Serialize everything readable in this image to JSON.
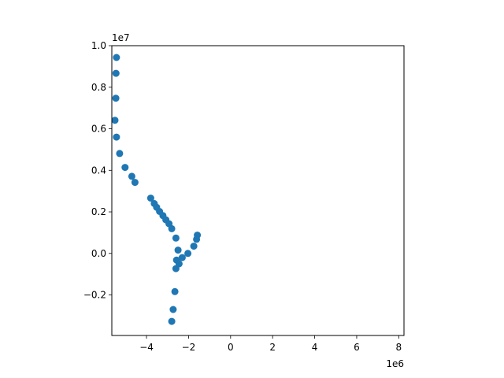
{
  "chart_data": {
    "type": "scatter",
    "title": "",
    "xlabel": "",
    "ylabel": "",
    "x_offset_label": "1e6",
    "y_offset_label": "1e7",
    "xlim": [
      -5.65,
      8.25
    ],
    "ylim": [
      -0.395,
      1.0
    ],
    "xticks": [
      -4,
      -2,
      0,
      2,
      4,
      6,
      8
    ],
    "xtick_labels": [
      "−4",
      "−2",
      "0",
      "2",
      "4",
      "6",
      "8"
    ],
    "yticks": [
      -0.2,
      0.0,
      0.2,
      0.4,
      0.6,
      0.8,
      1.0
    ],
    "ytick_labels": [
      "−0.2",
      "0.0",
      "0.2",
      "0.4",
      "0.6",
      "0.8",
      "1.0"
    ],
    "grid": false,
    "marker_color": "#1f77b4",
    "series": [
      {
        "points": [
          [
            -5.43,
            0.943
          ],
          [
            -5.45,
            0.867
          ],
          [
            -5.46,
            0.747
          ],
          [
            -5.5,
            0.641
          ],
          [
            -5.43,
            0.56
          ],
          [
            -5.28,
            0.481
          ],
          [
            -5.02,
            0.414
          ],
          [
            -4.7,
            0.371
          ],
          [
            -4.55,
            0.342
          ],
          [
            -3.8,
            0.266
          ],
          [
            -3.63,
            0.24
          ],
          [
            -3.52,
            0.222
          ],
          [
            -3.38,
            0.202
          ],
          [
            -3.22,
            0.182
          ],
          [
            -3.08,
            0.162
          ],
          [
            -2.93,
            0.143
          ],
          [
            -2.8,
            0.119
          ],
          [
            -2.6,
            0.074
          ],
          [
            -2.5,
            0.016
          ],
          [
            -2.57,
            -0.032
          ],
          [
            -2.45,
            -0.05
          ],
          [
            -2.3,
            -0.02
          ],
          [
            -2.03,
            0.0
          ],
          [
            -1.75,
            0.035
          ],
          [
            -1.62,
            0.068
          ],
          [
            -1.58,
            0.088
          ],
          [
            -2.6,
            -0.073
          ],
          [
            -2.65,
            -0.184
          ],
          [
            -2.73,
            -0.27
          ],
          [
            -2.8,
            -0.327
          ]
        ]
      }
    ]
  }
}
